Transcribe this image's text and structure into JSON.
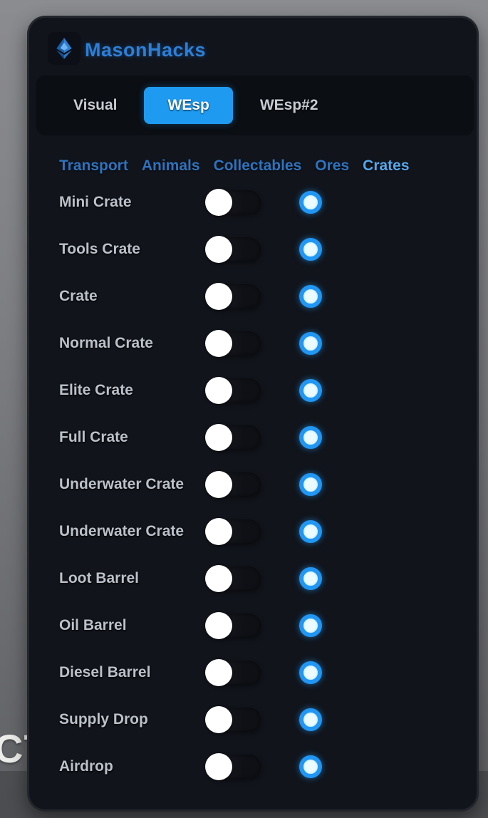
{
  "background": {
    "partial_text": "CT"
  },
  "header": {
    "title": "MasonHacks",
    "logo_icon": "gem-icon"
  },
  "tabs": {
    "items": [
      {
        "label": "Visual",
        "active": false
      },
      {
        "label": "WEsp",
        "active": true
      },
      {
        "label": "WEsp#2",
        "active": false
      }
    ]
  },
  "subnav": {
    "items": [
      {
        "label": "Transport",
        "active": false
      },
      {
        "label": "Animals",
        "active": false
      },
      {
        "label": "Collectables",
        "active": false
      },
      {
        "label": "Ores",
        "active": false
      },
      {
        "label": "Crates",
        "active": true
      }
    ]
  },
  "esp_list": {
    "rows": [
      {
        "label": "Mini Crate",
        "toggle": "off"
      },
      {
        "label": "Tools Crate",
        "toggle": "off"
      },
      {
        "label": "Crate",
        "toggle": "off"
      },
      {
        "label": "Normal Crate",
        "toggle": "off"
      },
      {
        "label": "Elite Crate",
        "toggle": "off"
      },
      {
        "label": "Full Crate",
        "toggle": "off"
      },
      {
        "label": "Underwater Crate",
        "toggle": "off"
      },
      {
        "label": "Underwater Crate",
        "toggle": "off"
      },
      {
        "label": "Loot Barrel",
        "toggle": "off"
      },
      {
        "label": "Oil Barrel",
        "toggle": "off"
      },
      {
        "label": "Diesel Barrel",
        "toggle": "off"
      },
      {
        "label": "Supply Drop",
        "toggle": "off"
      },
      {
        "label": "Airdrop",
        "toggle": "off"
      }
    ]
  },
  "colors": {
    "accent": "#1e9bf0",
    "panel_bg": "#11141b",
    "tabbar_bg": "#0b0e13",
    "title_blue": "#2d7fd6",
    "subnav_blue": "#2e73bd",
    "subnav_active_blue": "#55a8ec",
    "label_gray": "#bcc1c9",
    "swatch_ring": "#2196f3",
    "swatch_center": "#ecfbff",
    "toggle_knob": "#ffffff"
  }
}
